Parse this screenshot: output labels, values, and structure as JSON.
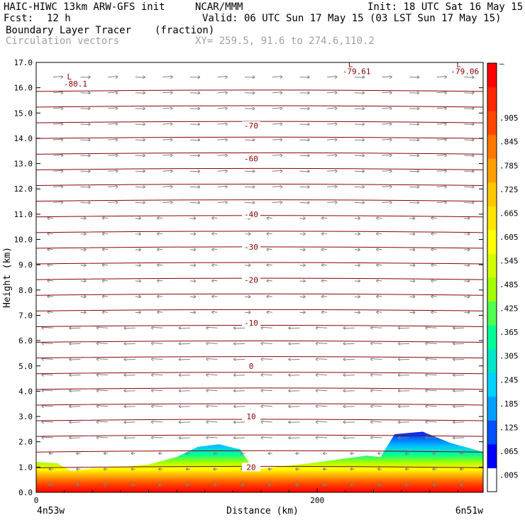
{
  "header": {
    "model": "HAIC-HIWC 13km ARW-GFS init",
    "org": "NCAR/MMM",
    "init": "Init: 18 UTC Sat 16 May 15",
    "fcst_label": "Fcst:",
    "fcst_value": "12 h",
    "valid": "Valid: 06 UTC Sun 17 May 15 (03 LST Sun 17 May 15)",
    "field": "Boundary Layer Tracer",
    "units": "(fraction)",
    "vectors": "Circulation vectors",
    "xy": "XY= 259.5, 91.6 to 274.6,110.2"
  },
  "chart_data": {
    "type": "heatmap",
    "xlabel": "Distance (km)",
    "ylabel": "Height (km)",
    "xlim": [
      0,
      318
    ],
    "ylim": [
      0,
      17
    ],
    "x_ticks": [
      0,
      200
    ],
    "y_ticks": [
      "0.0",
      "1.0",
      "2.0",
      "3.0",
      "4.0",
      "5.0",
      "6.0",
      "7.0",
      "8.0",
      "9.0",
      "10.0",
      "11.0",
      "12.0",
      "13.0",
      "14.0",
      "15.0",
      "16.0",
      "17.0"
    ],
    "x_endpoints": {
      "left": "4n53w",
      "right": "6n51w"
    },
    "colorbar": {
      "labels": [
        ".005",
        ".065",
        ".125",
        ".185",
        ".245",
        ".305",
        ".365",
        ".425",
        ".485",
        ".545",
        ".605",
        ".665",
        ".725",
        ".785",
        ".845",
        ".905",
        "–"
      ],
      "colors": [
        "#ffffff",
        "#0000ff",
        "#0050ff",
        "#00a0ff",
        "#00d2ff",
        "#00e6c8",
        "#00ff96",
        "#50ff50",
        "#a0ff00",
        "#d2ff00",
        "#ffff00",
        "#ffe600",
        "#ffc800",
        "#ffa000",
        "#ff7800",
        "#ff4600",
        "#ff2800",
        "#ff0000"
      ]
    },
    "contours": {
      "field": "temperature",
      "levels": [
        {
          "label": "-70",
          "height": 14.5
        },
        {
          "label": "-60",
          "height": 13.2
        },
        {
          "label": "-40",
          "height": 11.0
        },
        {
          "label": "-30",
          "height": 9.7
        },
        {
          "label": "-20",
          "height": 8.4
        },
        {
          "label": "-10",
          "height": 6.7
        },
        {
          "label": "0",
          "height": 5.0
        },
        {
          "label": "10",
          "height": 3.0
        },
        {
          "label": "20",
          "height": 1.0
        }
      ],
      "lows": [
        {
          "label": "L",
          "value": "-80.1",
          "x": 28,
          "height": 16.1
        },
        {
          "label": "L",
          "value": "-79.61",
          "x": 228,
          "height": 16.6
        },
        {
          "label": "L",
          "value": "-79.06",
          "x": 305,
          "height": 16.6
        }
      ]
    },
    "tracer_top": [
      [
        0,
        1.2
      ],
      [
        15,
        1.15
      ],
      [
        25,
        0.85
      ],
      [
        40,
        0.95
      ],
      [
        60,
        1.0
      ],
      [
        80,
        1.1
      ],
      [
        100,
        1.4
      ],
      [
        115,
        1.8
      ],
      [
        130,
        1.9
      ],
      [
        145,
        1.7
      ],
      [
        155,
        0.9
      ],
      [
        170,
        1.0
      ],
      [
        195,
        1.15
      ],
      [
        215,
        1.3
      ],
      [
        235,
        1.45
      ],
      [
        245,
        1.4
      ],
      [
        255,
        2.3
      ],
      [
        275,
        2.4
      ],
      [
        295,
        1.95
      ],
      [
        318,
        1.6
      ]
    ]
  }
}
